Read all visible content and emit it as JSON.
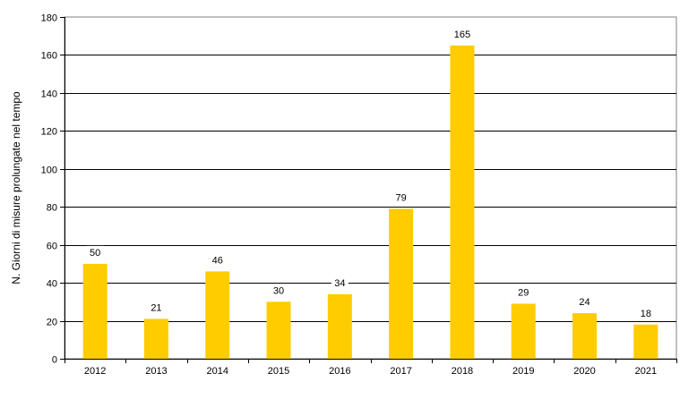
{
  "chart_data": {
    "type": "bar",
    "title": "",
    "xlabel": "",
    "ylabel": "N. Giorni di misure prolungate  nel tempo",
    "categories": [
      "2012",
      "2013",
      "2014",
      "2015",
      "2016",
      "2017",
      "2018",
      "2019",
      "2020",
      "2021"
    ],
    "values": [
      50,
      21,
      46,
      30,
      34,
      79,
      165,
      29,
      24,
      18
    ],
    "ylim": [
      0,
      180
    ],
    "yticks": [
      0,
      20,
      40,
      60,
      80,
      100,
      120,
      140,
      160,
      180
    ],
    "grid": true,
    "legend": null,
    "data_labels": true,
    "bar_color": "#FFCC00",
    "grid_color": "#000000",
    "frame_color": "#808080"
  }
}
